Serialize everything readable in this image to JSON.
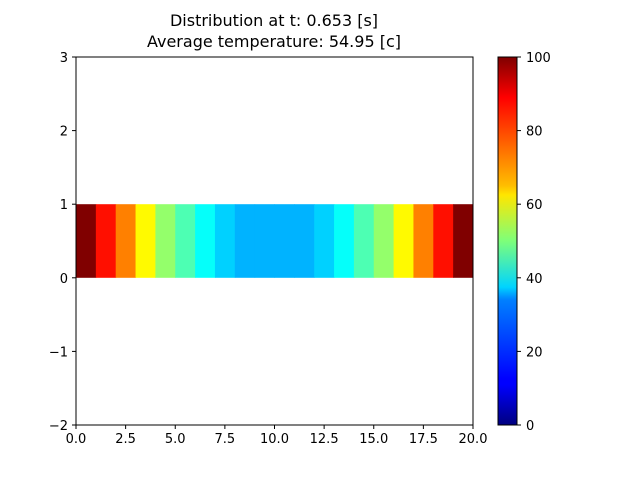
{
  "chart_data": {
    "type": "heatmap",
    "title_line1": "Distribution at t: 0.653 [s]",
    "title_line2": "Average temperature: 54.95 [c]",
    "xlabel": "",
    "ylabel": "",
    "xlim": [
      0,
      20
    ],
    "ylim": [
      -2,
      3
    ],
    "x_ticks": [
      0,
      2.5,
      5,
      7.5,
      10,
      12.5,
      15,
      17.5,
      20
    ],
    "x_tick_labels": [
      "0.0",
      "2.5",
      "5.0",
      "7.5",
      "10.0",
      "12.5",
      "15.0",
      "17.5",
      "20.0"
    ],
    "y_ticks": [
      -2,
      -1,
      0,
      1,
      2,
      3
    ],
    "y_tick_labels": [
      "−2",
      "−1",
      "0",
      "1",
      "2",
      "3"
    ],
    "band_y_range": [
      0,
      1
    ],
    "cell_width": 1,
    "values": [
      100,
      86,
      75,
      63,
      52,
      45,
      38,
      33,
      30,
      30,
      30,
      30,
      33,
      38,
      45,
      52,
      63,
      75,
      86,
      100
    ],
    "colormap": "jet",
    "colorbar": {
      "range": [
        0,
        100
      ],
      "ticks": [
        0,
        20,
        40,
        60,
        80,
        100
      ],
      "tick_labels": [
        "0",
        "20",
        "40",
        "60",
        "80",
        "100"
      ],
      "placement": "right"
    },
    "grid": false
  }
}
